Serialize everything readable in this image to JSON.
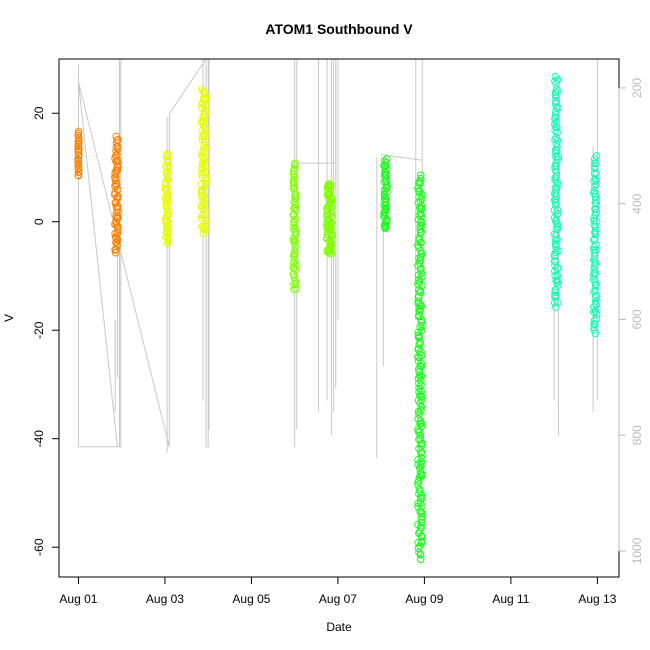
{
  "chart_data": {
    "type": "scatter",
    "title": "ATOM1 Southbound V",
    "xlabel": "Date",
    "ylabel": "V",
    "x_ticks": [
      "Aug 01",
      "Aug 03",
      "Aug 05",
      "Aug 07",
      "Aug 09",
      "Aug 11",
      "Aug 13"
    ],
    "x_tick_days": [
      1,
      3,
      5,
      7,
      9,
      11,
      13
    ],
    "xlim": [
      0.55,
      13.5
    ],
    "ylim": [
      -65.5,
      30
    ],
    "y_ticks": [
      20,
      0,
      -20,
      -40,
      -60
    ],
    "y2_ticks": [
      200,
      400,
      600,
      800,
      1000
    ],
    "y2lim": [
      1045,
      150
    ],
    "grid": false,
    "legend": "none",
    "series": [
      {
        "color": "#ff8000",
        "clusters": [
          {
            "day": 1.0,
            "vmin": 8.5,
            "vmax": 16.5,
            "n": 26,
            "width": 0.02
          },
          {
            "day": 1.88,
            "vmin": -5.5,
            "vmax": 15.5,
            "n": 60,
            "width": 0.08
          }
        ]
      },
      {
        "color": "#e6ff00",
        "clusters": [
          {
            "day": 3.05,
            "vmin": -4,
            "vmax": 12.5,
            "n": 55,
            "width": 0.07
          },
          {
            "day": 3.9,
            "vmin": -2,
            "vmax": 24.5,
            "n": 80,
            "width": 0.13
          }
        ]
      },
      {
        "color": "#80ff00",
        "clusters": [
          {
            "day": 6.0,
            "vmin": -12.5,
            "vmax": 11,
            "n": 55,
            "width": 0.06
          },
          {
            "day": 6.8,
            "vmin": -6,
            "vmax": 7,
            "n": 70,
            "width": 0.12
          }
        ]
      },
      {
        "color": "#19ff19",
        "clusters": [
          {
            "day": 8.1,
            "vmin": -1.5,
            "vmax": 11.5,
            "n": 45,
            "width": 0.07
          },
          {
            "day": 8.9,
            "vmin": -62,
            "vmax": 8.5,
            "n": 170,
            "width": 0.1
          }
        ]
      },
      {
        "color": "#14ffb4",
        "clusters": [
          {
            "day": 12.05,
            "vmin": -15.5,
            "vmax": 26.5,
            "n": 95,
            "width": 0.09
          },
          {
            "day": 12.95,
            "vmin": -20.5,
            "vmax": 12,
            "n": 70,
            "width": 0.07
          }
        ]
      }
    ]
  }
}
